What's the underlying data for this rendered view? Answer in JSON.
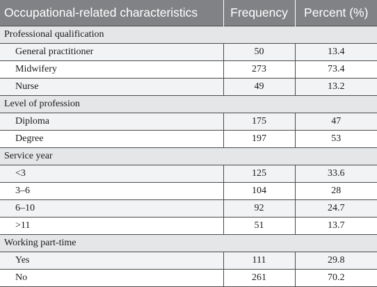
{
  "headers": [
    "Occupational-related characteristics",
    "Frequency",
    "Percent (%)"
  ],
  "groups": [
    {
      "label": "Professional qualification",
      "rows": [
        [
          "General practitioner",
          "50",
          "13.4"
        ],
        [
          "Midwifery",
          "273",
          "73.4"
        ],
        [
          "Nurse",
          "49",
          "13.2"
        ]
      ]
    },
    {
      "label": "Level of profession",
      "rows": [
        [
          "Diploma",
          "175",
          "47"
        ],
        [
          "Degree",
          "197",
          "53"
        ]
      ]
    },
    {
      "label": "Service year",
      "rows": [
        [
          "<3",
          "125",
          "33.6"
        ],
        [
          "3–6",
          "104",
          "28"
        ],
        [
          "6–10",
          "92",
          "24.7"
        ],
        [
          ">11",
          "51",
          "13.7"
        ]
      ]
    },
    {
      "label": "Working part-time",
      "rows": [
        [
          "Yes",
          "111",
          "29.8"
        ],
        [
          "No",
          "261",
          "70.2"
        ]
      ]
    }
  ]
}
